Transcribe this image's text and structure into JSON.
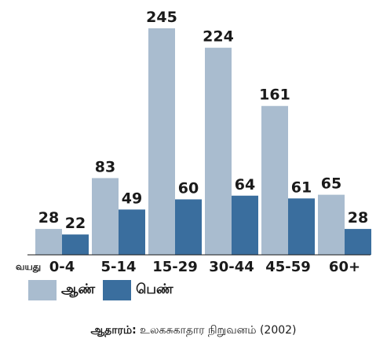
{
  "chart_data": {
    "type": "bar",
    "axis_prefix": "வயது",
    "categories": [
      "0-4",
      "5-14",
      "15-29",
      "30-44",
      "45-59",
      "60+"
    ],
    "series": [
      {
        "name": "ஆண்",
        "color": "#a9bccf",
        "values": [
          28,
          83,
          245,
          224,
          161,
          65
        ]
      },
      {
        "name": "பெண்",
        "color": "#3a6e9e",
        "values": [
          22,
          49,
          60,
          64,
          61,
          28
        ]
      }
    ],
    "ylim": [
      0,
      260
    ],
    "grid": false,
    "legend_position": "bottom-left"
  },
  "source": {
    "label": "ஆதாரம்:",
    "text": " உலகசுகாதார நிறுவனம் (2002)"
  }
}
